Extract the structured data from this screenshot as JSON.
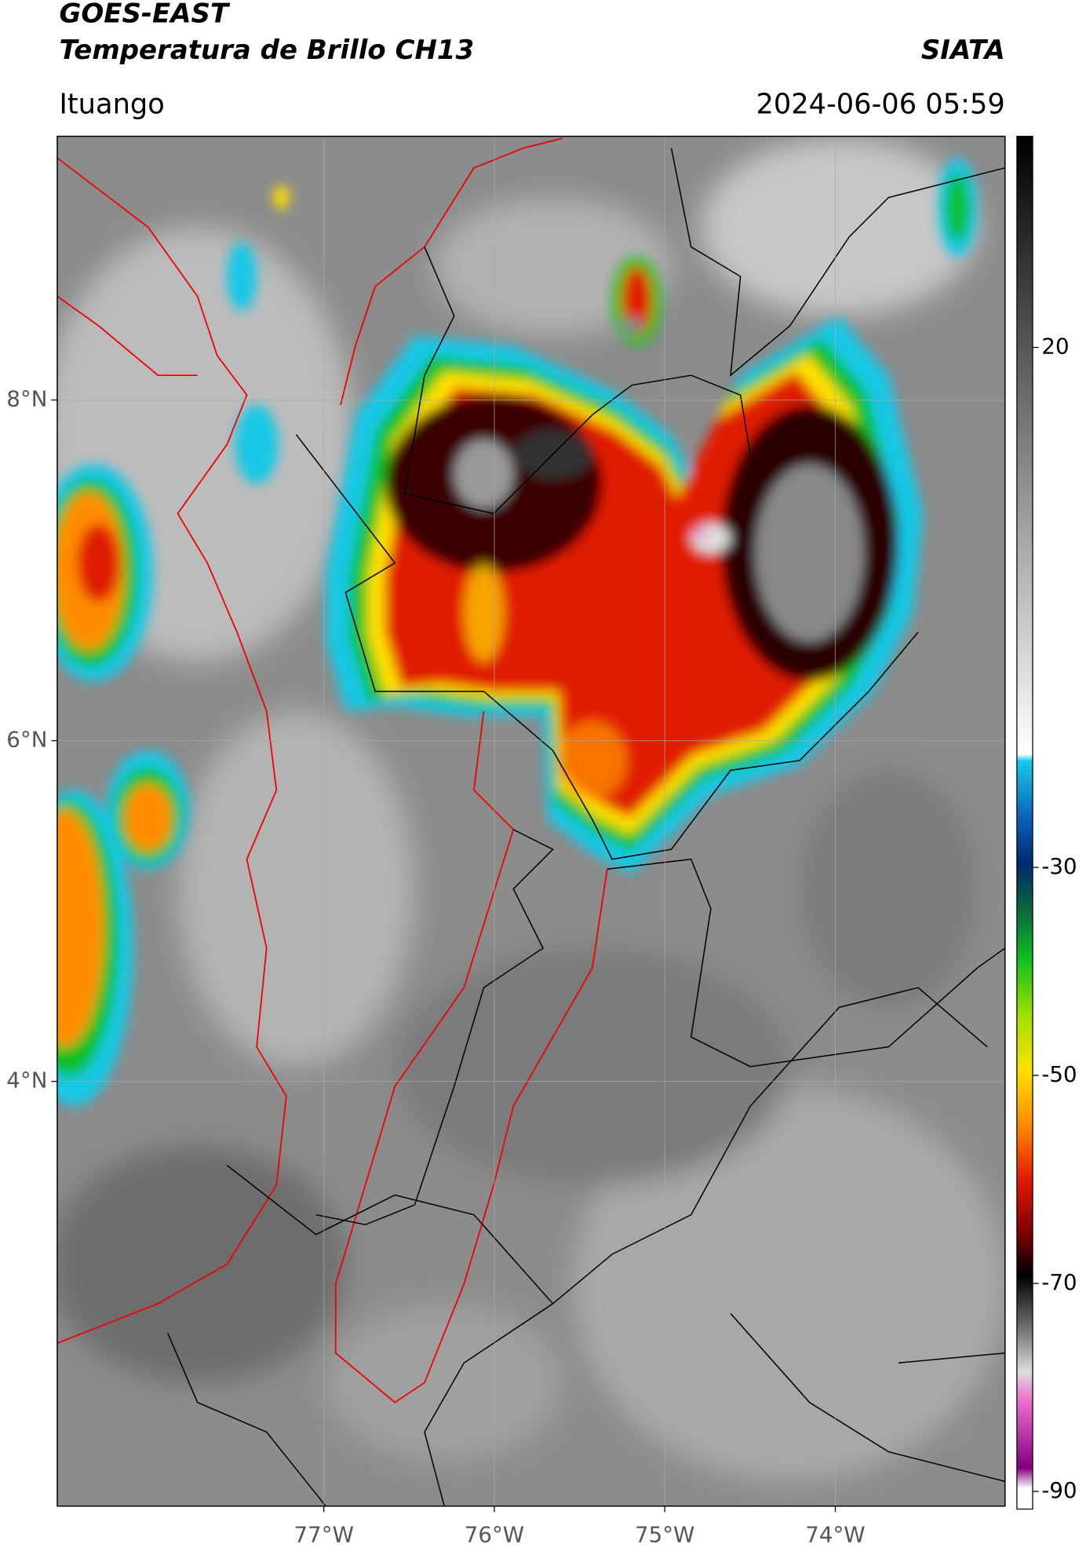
{
  "map": {
    "title": "GOES-EAST",
    "subtitle": "Temperatura de Brillo CH13",
    "source": "SIATA",
    "location": "Ituango",
    "timestamp": "2024-06-06 05:59",
    "xlim": [
      -78.564,
      -73.004
    ],
    "ylim": [
      1.507,
      9.548
    ],
    "xticks": [
      {
        "value": -77,
        "label": "77°W"
      },
      {
        "value": -76,
        "label": "76°W"
      },
      {
        "value": -75,
        "label": "75°W"
      },
      {
        "value": -74,
        "label": "74°W"
      }
    ],
    "yticks": [
      {
        "value": 8,
        "label": "8°N"
      },
      {
        "value": 6,
        "label": "6°N"
      },
      {
        "value": 4,
        "label": "4°N"
      }
    ],
    "colorbar": {
      "clim": [
        -91.7,
        40.3
      ],
      "ticks": [
        20,
        -30,
        -50,
        -70,
        -90
      ]
    }
  }
}
